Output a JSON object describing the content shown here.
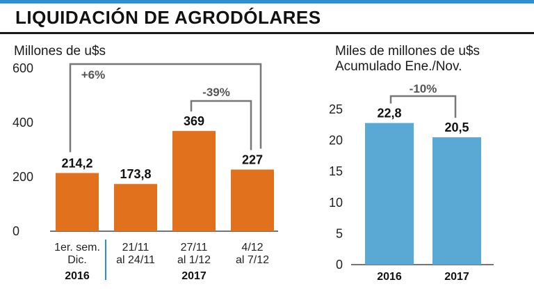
{
  "header": {
    "title": "LIQUIDACIÓN DE AGRODÓLARES"
  },
  "colors": {
    "accent_bar": "#2d8fd0",
    "left_bars": "#e2711d",
    "right_bars": "#5aa8d4",
    "bracket": "#777777"
  },
  "chart_data": [
    {
      "type": "bar",
      "unit_label": "Millones de u$s",
      "categories": [
        "1er. sem. Dic.",
        "21/11 al 24/11",
        "27/11 al 1/12",
        "4/12 al 7/12"
      ],
      "category_lines": [
        [
          "1er. sem.",
          "Dic."
        ],
        [
          "21/11",
          "al 24/11"
        ],
        [
          "27/11",
          "al 1/12"
        ],
        [
          "4/12",
          "al 7/12"
        ]
      ],
      "values": [
        214.2,
        173.8,
        369,
        227
      ],
      "value_labels": [
        "214,2",
        "173,8",
        "369",
        "227"
      ],
      "year_groups": [
        {
          "label": "2016",
          "categories": [
            "1er. sem. Dic."
          ]
        },
        {
          "label": "2017",
          "categories": [
            "21/11 al 24/11",
            "27/11 al 1/12",
            "4/12 al 7/12"
          ]
        }
      ],
      "yticks": [
        "0",
        "200",
        "400",
        "600"
      ],
      "ylim": [
        0,
        600
      ],
      "annotations": [
        {
          "label": "+6%",
          "from": "1er. sem. Dic.",
          "to": "4/12 al 7/12"
        },
        {
          "label": "-39%",
          "from": "27/11 al 1/12",
          "to": "4/12 al 7/12"
        }
      ]
    },
    {
      "type": "bar",
      "unit_label": [
        "Miles de millones de u$s",
        "Acumulado Ene./Nov."
      ],
      "categories": [
        "2016",
        "2017"
      ],
      "values": [
        22.8,
        20.5
      ],
      "value_labels": [
        "22,8",
        "20,5"
      ],
      "yticks": [
        "0",
        "5",
        "10",
        "15",
        "20",
        "25"
      ],
      "ylim": [
        0,
        25
      ],
      "annotations": [
        {
          "label": "-10%",
          "from": "2016",
          "to": "2017"
        }
      ]
    }
  ]
}
